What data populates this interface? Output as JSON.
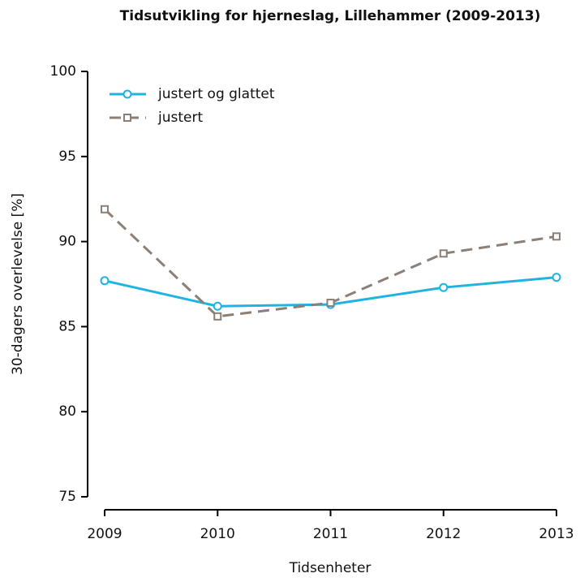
{
  "chart_data": {
    "type": "line",
    "title": "Tidsutvikling for hjerneslag, Lillehammer (2009-2013)",
    "x_label": "Tidsenheter",
    "y_label": "30-dagers overlevelse [%]",
    "x": [
      2009,
      2010,
      2011,
      2012,
      2013
    ],
    "xlim": [
      2009,
      2013
    ],
    "xticks": [
      2009,
      2010,
      2011,
      2012,
      2013
    ],
    "ylim": [
      75,
      100
    ],
    "yticks": [
      75,
      80,
      85,
      90,
      95,
      100
    ],
    "legend": "top-left",
    "series": [
      {
        "name": "justert og glattet",
        "color": "#1fb3e0",
        "marker": "circle",
        "dashed": false,
        "values": [
          87.7,
          86.2,
          86.3,
          87.3,
          87.9
        ]
      },
      {
        "name": "justert",
        "color": "#8c7f76",
        "marker": "square",
        "dashed": true,
        "values": [
          91.9,
          85.6,
          86.4,
          89.3,
          90.3
        ]
      }
    ]
  }
}
